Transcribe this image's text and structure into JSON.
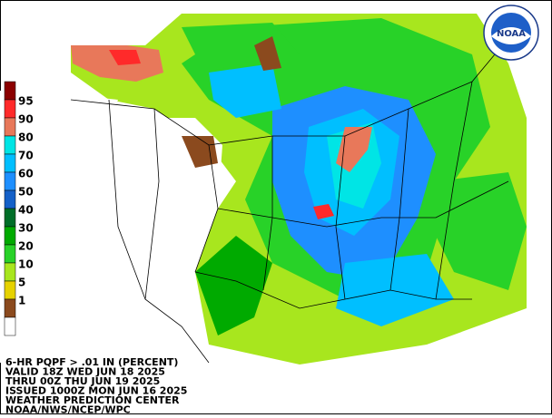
{
  "legend": {
    "labels": [
      "95",
      "90",
      "80",
      "70",
      "60",
      "50",
      "40",
      "30",
      "20",
      "10",
      "5",
      "1"
    ],
    "colors": [
      "#8b0000",
      "#ff2a2a",
      "#e8785a",
      "#00e5e5",
      "#00bfff",
      "#1e8fff",
      "#1460c8",
      "#006e28",
      "#00aa00",
      "#28d228",
      "#a8e61e",
      "#e6d200",
      "#8b4a1e",
      "#ffffff"
    ]
  },
  "info": {
    "lines": [
      "6-HR PQPF > .01 IN (PERCENT)",
      "VALID 18Z WED JUN 18 2025",
      "THRU 00Z THU JUN 19 2025",
      "ISSUED 1000Z MON JUN 16 2025",
      "WEATHER PREDICTION CENTER",
      "NOAA/NWS/NCEP/WPC"
    ]
  },
  "logo": {
    "text": "NOAA"
  }
}
